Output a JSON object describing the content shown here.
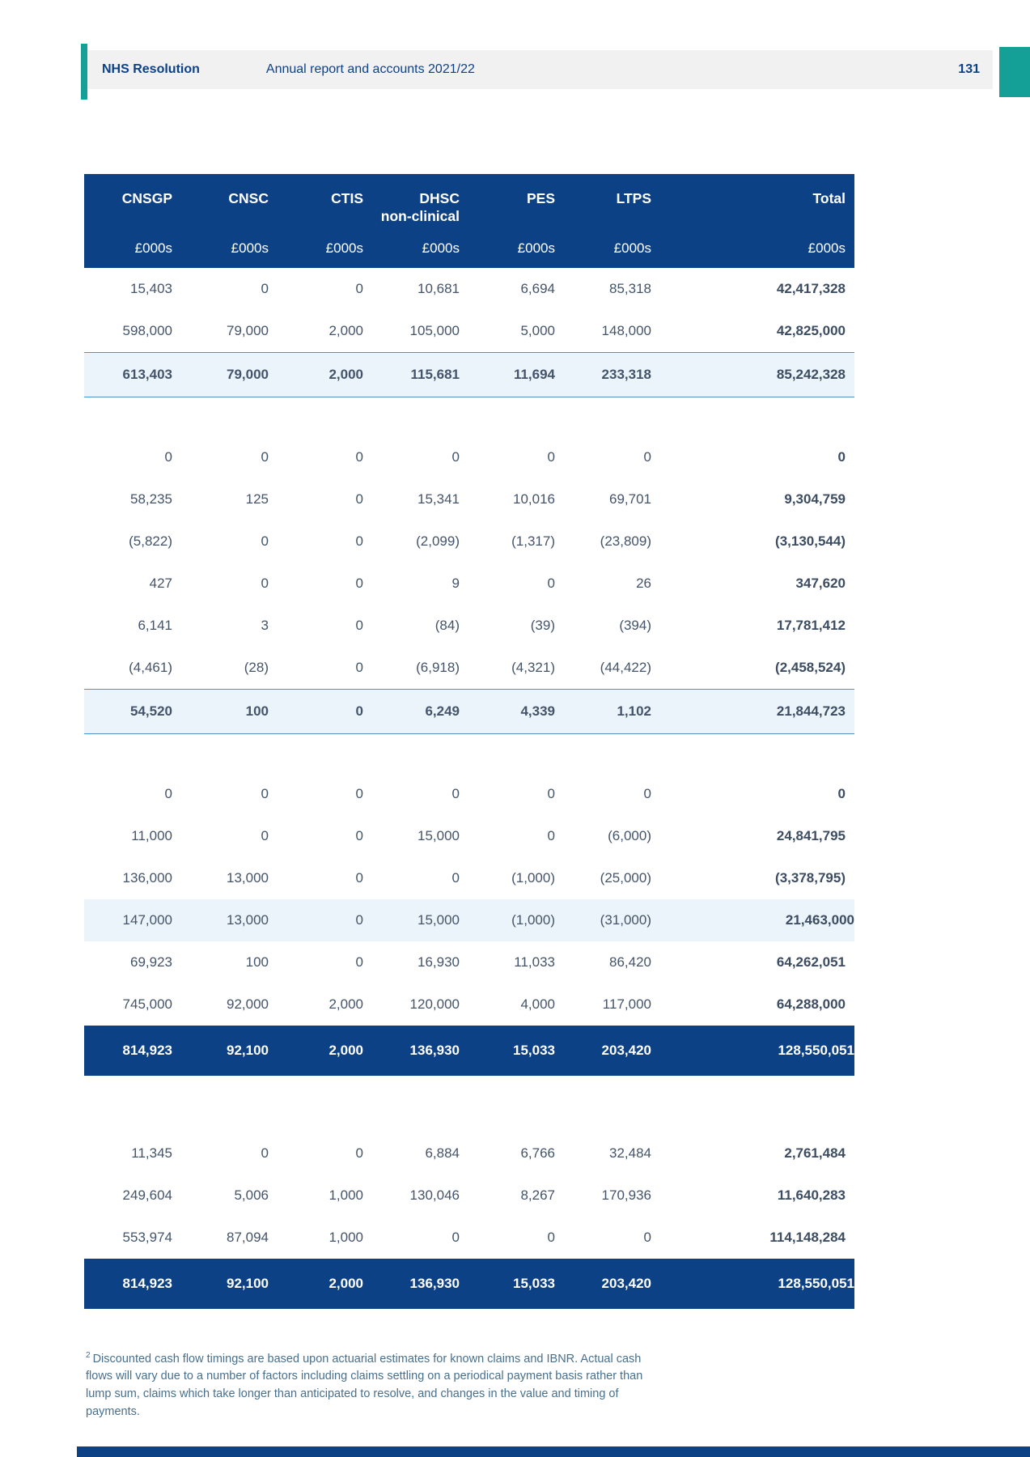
{
  "page": {
    "header": {
      "brand": "NHS Resolution",
      "doc_title": "Annual report and accounts 2021/22",
      "page_number": "131"
    },
    "footnote": {
      "marker": "2",
      "text": "Discounted cash flow timings are based upon actuarial estimates for known claims and IBNR. Actual cash flows will vary due to a number of factors including claims settling on a periodical payment basis rather than lump sum, claims which take longer than anticipated to resolve, and changes in the value and timing of payments."
    }
  },
  "colors": {
    "navy": "#0d4186",
    "teal": "#14a096",
    "subtotal_bg": "#ecf4fb",
    "subtotal_rule": "#4f94c9",
    "body_text": "#44546a",
    "header_band_bg": "#f1f1f2"
  },
  "table": {
    "columns": [
      {
        "label": "CNSGP",
        "sub": "",
        "unit": "£000s"
      },
      {
        "label": "CNSC",
        "sub": "",
        "unit": "£000s"
      },
      {
        "label": "CTIS",
        "sub": "",
        "unit": "£000s"
      },
      {
        "label": "DHSC",
        "sub": "non-clinical",
        "unit": "£000s"
      },
      {
        "label": "PES",
        "sub": "",
        "unit": "£000s"
      },
      {
        "label": "LTPS",
        "sub": "",
        "unit": "£000s"
      },
      {
        "label": "Total",
        "sub": "",
        "unit": "£000s"
      }
    ],
    "rows": [
      {
        "type": "normal",
        "values": [
          "15,403",
          "0",
          "0",
          "10,681",
          "6,694",
          "85,318",
          "42,417,328"
        ]
      },
      {
        "type": "normal",
        "values": [
          "598,000",
          "79,000",
          "2,000",
          "105,000",
          "5,000",
          "148,000",
          "42,825,000"
        ]
      },
      {
        "type": "subtotal",
        "values": [
          "613,403",
          "79,000",
          "2,000",
          "115,681",
          "11,694",
          "233,318",
          "85,242,328"
        ]
      },
      {
        "type": "gap-md"
      },
      {
        "type": "normal",
        "values": [
          "0",
          "0",
          "0",
          "0",
          "0",
          "0",
          "0"
        ]
      },
      {
        "type": "normal",
        "values": [
          "58,235",
          "125",
          "0",
          "15,341",
          "10,016",
          "69,701",
          "9,304,759"
        ]
      },
      {
        "type": "normal",
        "values": [
          "(5,822)",
          "0",
          "0",
          "(2,099)",
          "(1,317)",
          "(23,809)",
          "(3,130,544)"
        ]
      },
      {
        "type": "normal",
        "values": [
          "427",
          "0",
          "0",
          "9",
          "0",
          "26",
          "347,620"
        ]
      },
      {
        "type": "normal",
        "values": [
          "6,141",
          "3",
          "0",
          "(84)",
          "(39)",
          "(394)",
          "17,781,412"
        ]
      },
      {
        "type": "normal",
        "values": [
          "(4,461)",
          "(28)",
          "0",
          "(6,918)",
          "(4,321)",
          "(44,422)",
          "(2,458,524)"
        ]
      },
      {
        "type": "subtotal",
        "values": [
          "54,520",
          "100",
          "0",
          "6,249",
          "4,339",
          "1,102",
          "21,844,723"
        ]
      },
      {
        "type": "gap-md"
      },
      {
        "type": "normal",
        "values": [
          "0",
          "0",
          "0",
          "0",
          "0",
          "0",
          "0"
        ]
      },
      {
        "type": "normal",
        "values": [
          "11,000",
          "0",
          "0",
          "15,000",
          "0",
          "(6,000)",
          "24,841,795"
        ]
      },
      {
        "type": "normal",
        "values": [
          "136,000",
          "13,000",
          "0",
          "0",
          "(1,000)",
          "(25,000)",
          "(3,378,795)"
        ]
      },
      {
        "type": "subtotal-plain",
        "values": [
          "147,000",
          "13,000",
          "0",
          "15,000",
          "(1,000)",
          "(31,000)",
          "21,463,000"
        ]
      },
      {
        "type": "normal",
        "values": [
          "69,923",
          "100",
          "0",
          "16,930",
          "11,033",
          "86,420",
          "64,262,051"
        ]
      },
      {
        "type": "normal",
        "values": [
          "745,000",
          "92,000",
          "2,000",
          "120,000",
          "4,000",
          "117,000",
          "64,288,000"
        ]
      },
      {
        "type": "grandtotal",
        "values": [
          "814,923",
          "92,100",
          "2,000",
          "136,930",
          "15,033",
          "203,420",
          "128,550,051"
        ]
      },
      {
        "type": "gap-lg"
      },
      {
        "type": "normal",
        "values": [
          "11,345",
          "0",
          "0",
          "6,884",
          "6,766",
          "32,484",
          "2,761,484"
        ]
      },
      {
        "type": "normal",
        "values": [
          "249,604",
          "5,006",
          "1,000",
          "130,046",
          "8,267",
          "170,936",
          "11,640,283"
        ]
      },
      {
        "type": "normal",
        "values": [
          "553,974",
          "87,094",
          "1,000",
          "0",
          "0",
          "0",
          "114,148,284"
        ]
      },
      {
        "type": "grandtotal",
        "values": [
          "814,923",
          "92,100",
          "2,000",
          "136,930",
          "15,033",
          "203,420",
          "128,550,051"
        ]
      }
    ]
  }
}
